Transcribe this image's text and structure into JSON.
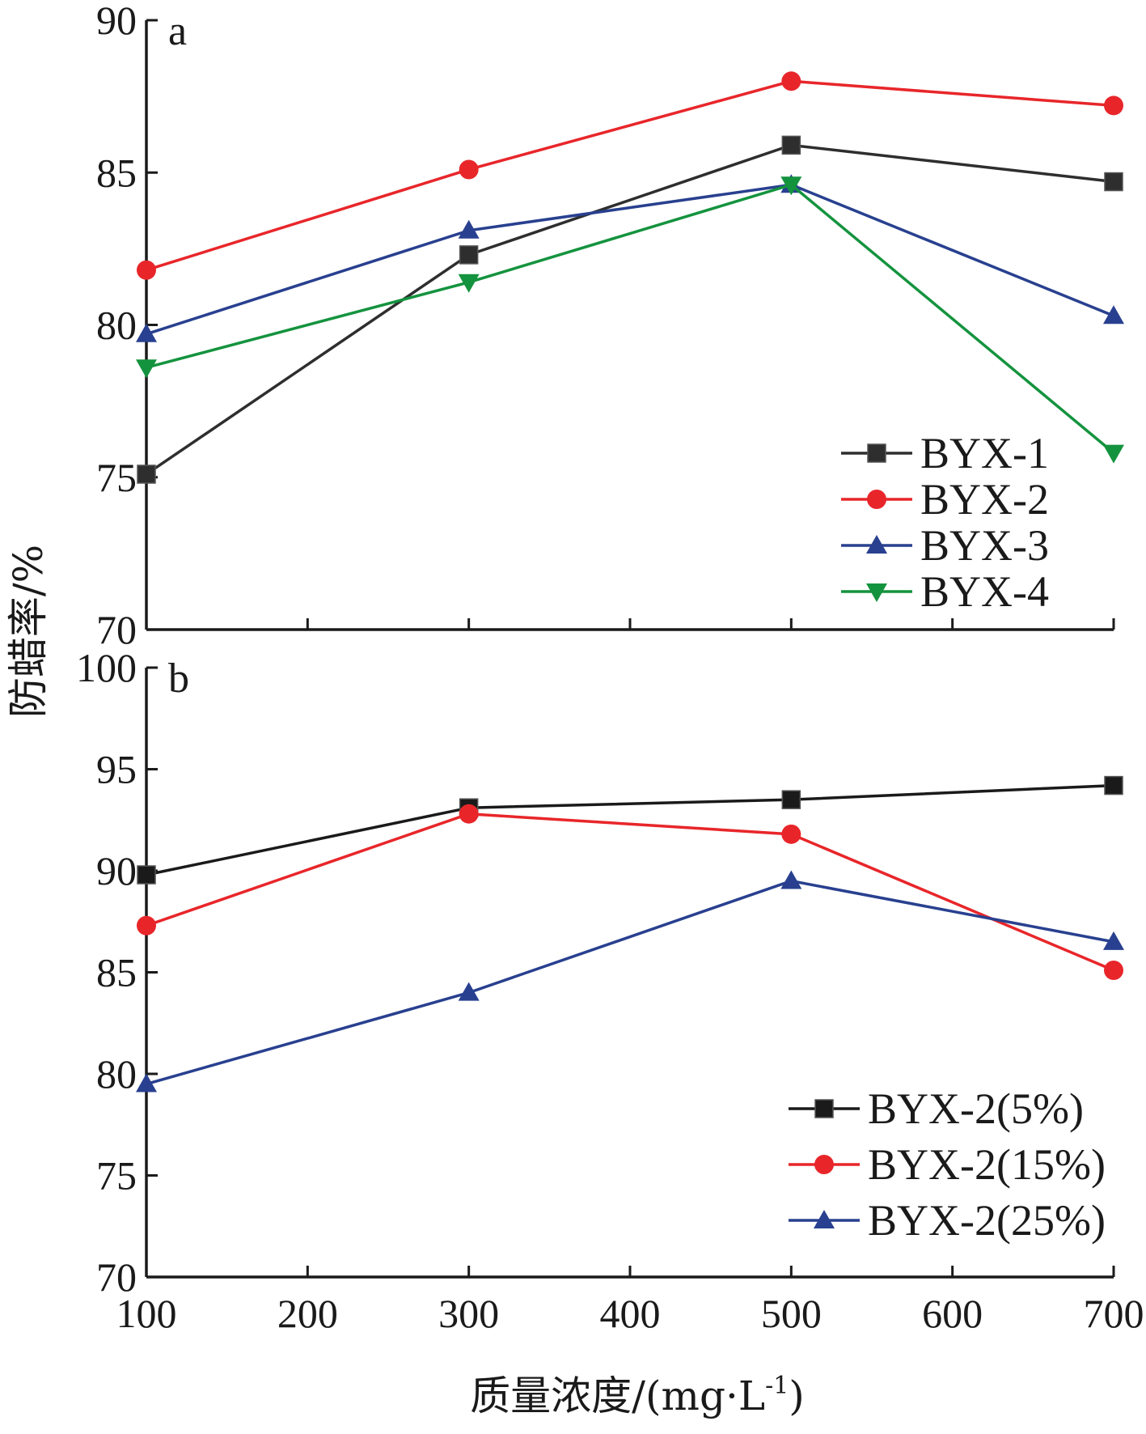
{
  "chart_data": {
    "type": "line",
    "xlabel": "质量浓度/(mg·L",
    "xlabel_sup": "-1",
    "xlabel_close": ")",
    "ylabel": "防蜡率/%",
    "x_ticks": [
      100,
      200,
      300,
      400,
      500,
      600,
      700
    ],
    "xlim": [
      100,
      700
    ],
    "legend_position": "bottom-right",
    "grid": false,
    "panels": [
      {
        "label": "a",
        "ylim": [
          70,
          90
        ],
        "y_ticks": [
          70,
          75,
          80,
          85,
          90
        ],
        "x": [
          100,
          300,
          500,
          700
        ],
        "series": [
          {
            "name": "BYX-1",
            "color": "#2e2e2e",
            "marker": "square",
            "values": [
              75.1,
              82.3,
              85.9,
              84.7
            ]
          },
          {
            "name": "BYX-2",
            "color": "#e8262a",
            "marker": "circle",
            "values": [
              81.8,
              85.1,
              88.0,
              87.2
            ]
          },
          {
            "name": "BYX-3",
            "color": "#28408f",
            "marker": "triangle-up",
            "values": [
              79.7,
              83.1,
              84.6,
              80.3
            ]
          },
          {
            "name": "BYX-4",
            "color": "#14933e",
            "marker": "triangle-down",
            "values": [
              78.6,
              81.4,
              84.6,
              75.8
            ]
          }
        ]
      },
      {
        "label": "b",
        "ylim": [
          70,
          100
        ],
        "y_ticks": [
          70,
          75,
          80,
          85,
          90,
          95,
          100
        ],
        "x": [
          100,
          300,
          500,
          700
        ],
        "series": [
          {
            "name": "BYX-2(5%)",
            "color": "#1a1a1a",
            "marker": "square",
            "values": [
              89.8,
              93.1,
              93.5,
              94.2
            ]
          },
          {
            "name": "BYX-2(15%)",
            "color": "#e8262a",
            "marker": "circle",
            "values": [
              87.3,
              92.8,
              91.8,
              85.1
            ]
          },
          {
            "name": "BYX-2(25%)",
            "color": "#28408f",
            "marker": "triangle-up",
            "values": [
              79.5,
              84.0,
              89.5,
              86.5
            ]
          }
        ]
      }
    ]
  }
}
